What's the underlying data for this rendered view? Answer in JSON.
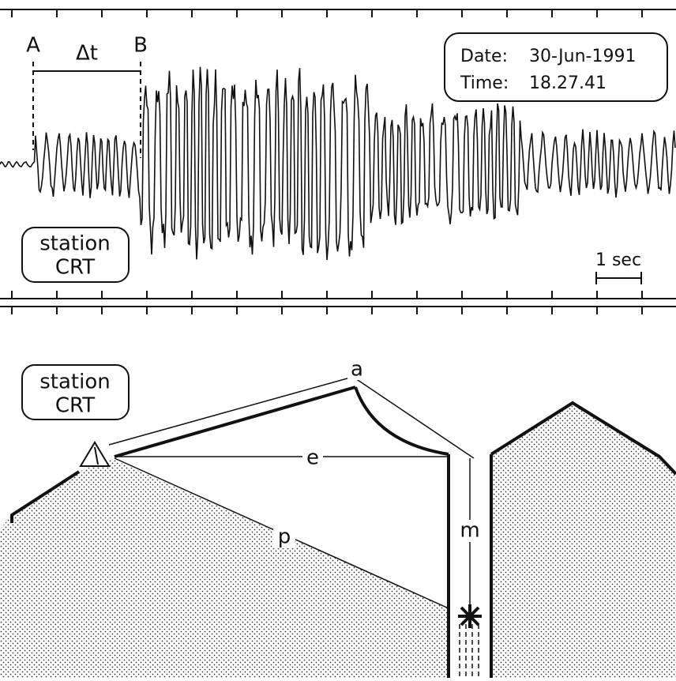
{
  "seismogram": {
    "markers": {
      "start": "A",
      "interval": "Δt",
      "end": "B"
    },
    "info": {
      "date_label": "Date:",
      "date": "30-Jun-1991",
      "time_label": "Time:",
      "time": "18.27.41"
    },
    "station": {
      "line1": "station",
      "line2": "CRT"
    },
    "scale": "1 sec"
  },
  "cross_section": {
    "station": {
      "line1": "station",
      "line2": "CRT"
    },
    "paths": {
      "air": "a",
      "epicentral": "e",
      "ground": "p",
      "shaft": "m"
    }
  }
}
